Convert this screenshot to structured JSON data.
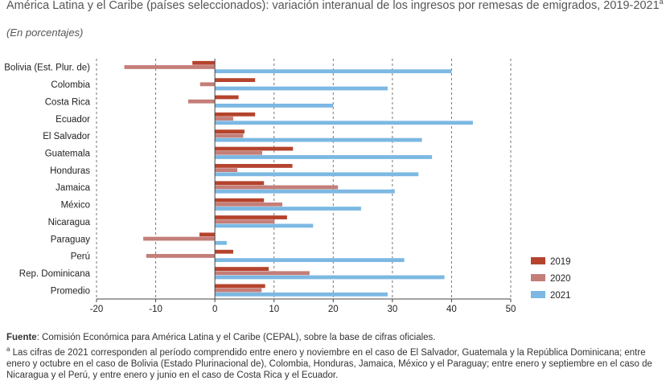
{
  "header": {
    "title": "América Latina y el Caribe (países seleccionados): variación interanual de los ingresos por remesas de emigrados, 2019-2021",
    "title_sup": "a",
    "subtitle": "(En porcentajes)"
  },
  "footer": {
    "source_label": "Fuente",
    "source_text": ": Comisión Económica para América Latina y el Caribe (CEPAL), sobre la base de cifras oficiales.",
    "note_mark": "a",
    "note_text": " Las cifras de 2021 corresponden al período comprendido entre enero y noviembre en el caso de El Salvador, Guatemala y la República Dominicana; entre enero y octubre en el caso de Bolivia (Estado Plurinacional de), Colombia, Honduras, Jamaica, México y el Paraguay; entre enero y septiembre en el caso de Nicaragua y el Perú, y entre enero y junio en el caso de Costa Rica y el Ecuador."
  },
  "chart_data": {
    "type": "bar",
    "orientation": "horizontal",
    "categories": [
      "Bolivia (Est. Plur. de)",
      "Colombia",
      "Costa Rica",
      "Ecuador",
      "El Salvador",
      "Guatemala",
      "Honduras",
      "Jamaica",
      "México",
      "Nicaragua",
      "Paraguay",
      "Perú",
      "Rep. Dominicana",
      "Promedio"
    ],
    "series": [
      {
        "name": "2019",
        "color": "#b5432d",
        "values": [
          -3.8,
          6.8,
          4.0,
          6.8,
          5.0,
          13.2,
          13.1,
          8.3,
          8.3,
          12.2,
          -2.6,
          3.1,
          9.1,
          8.5
        ]
      },
      {
        "name": "2020",
        "color": "#c47e78",
        "values": [
          -15.3,
          -2.5,
          -4.5,
          3.1,
          4.8,
          8.0,
          3.8,
          20.8,
          11.4,
          10.1,
          -12.1,
          -11.6,
          16.0,
          7.9
        ]
      },
      {
        "name": "2021",
        "color": "#7cb8e3",
        "values": [
          40.0,
          29.2,
          20.0,
          43.6,
          35.0,
          36.7,
          34.4,
          30.4,
          24.7,
          16.6,
          2.0,
          32.0,
          38.8,
          29.2
        ]
      }
    ],
    "xlim": [
      -20,
      50
    ],
    "xticks": [
      "-20",
      "-10",
      "0",
      "10",
      "20",
      "30",
      "40",
      "50"
    ],
    "grid": "vertical dashed",
    "legend_position": "right"
  }
}
